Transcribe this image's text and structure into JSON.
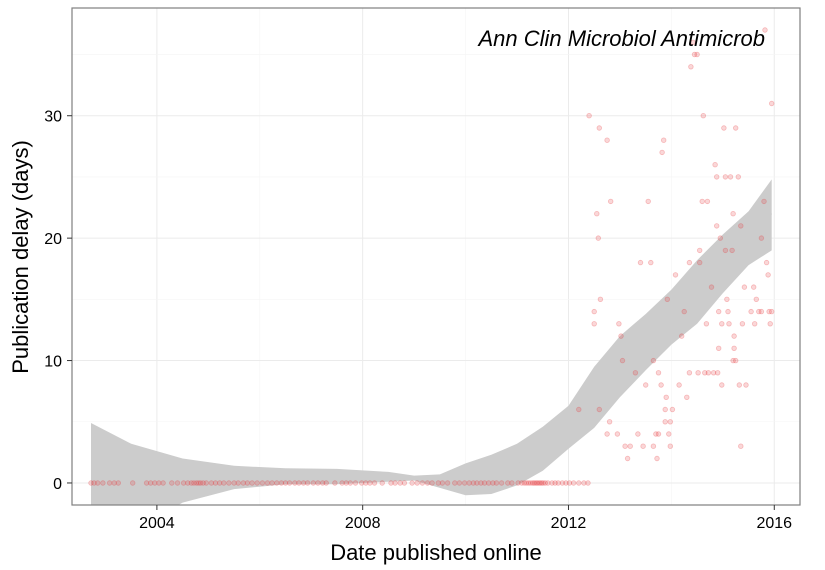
{
  "chart_data": {
    "type": "scatter",
    "title": "",
    "annotation": "Ann Clin Microbiol Antimicrob",
    "xlabel": "Date published online",
    "ylabel": "Publication delay (days)",
    "x_type": "year",
    "xlim": [
      2002.35,
      2016.5
    ],
    "ylim": [
      -1.8,
      38.8
    ],
    "x_ticks": [
      {
        "value": 2004,
        "label": "2004"
      },
      {
        "value": 2008,
        "label": "2008"
      },
      {
        "value": 2012,
        "label": "2012"
      },
      {
        "value": 2016,
        "label": "2016"
      }
    ],
    "y_ticks": [
      {
        "value": 0,
        "label": "0"
      },
      {
        "value": 10,
        "label": "10"
      },
      {
        "value": 20,
        "label": "20"
      },
      {
        "value": 30,
        "label": "30"
      }
    ],
    "grid": true,
    "point_color": "#e8383d",
    "band_color": "#cccccc",
    "points": [
      [
        2002.72,
        0
      ],
      [
        2002.78,
        0
      ],
      [
        2002.85,
        0
      ],
      [
        2002.95,
        0
      ],
      [
        2003.08,
        0
      ],
      [
        2003.17,
        0
      ],
      [
        2003.25,
        0
      ],
      [
        2003.53,
        0
      ],
      [
        2003.8,
        0
      ],
      [
        2003.88,
        0
      ],
      [
        2003.96,
        0
      ],
      [
        2004.04,
        0
      ],
      [
        2004.12,
        0
      ],
      [
        2004.29,
        0
      ],
      [
        2004.4,
        0
      ],
      [
        2004.52,
        0
      ],
      [
        2004.6,
        0
      ],
      [
        2004.67,
        0
      ],
      [
        2004.72,
        0
      ],
      [
        2004.77,
        0
      ],
      [
        2004.81,
        0
      ],
      [
        2004.85,
        0
      ],
      [
        2004.9,
        0
      ],
      [
        2004.96,
        0
      ],
      [
        2005.06,
        0
      ],
      [
        2005.14,
        0
      ],
      [
        2005.22,
        0
      ],
      [
        2005.3,
        0
      ],
      [
        2005.4,
        0
      ],
      [
        2005.5,
        0
      ],
      [
        2005.58,
        0
      ],
      [
        2005.68,
        0
      ],
      [
        2005.76,
        0
      ],
      [
        2005.85,
        0
      ],
      [
        2005.95,
        0
      ],
      [
        2006.05,
        0
      ],
      [
        2006.15,
        0
      ],
      [
        2006.24,
        0
      ],
      [
        2006.33,
        0
      ],
      [
        2006.42,
        0
      ],
      [
        2006.5,
        0
      ],
      [
        2006.58,
        0
      ],
      [
        2006.68,
        0
      ],
      [
        2006.76,
        0
      ],
      [
        2006.85,
        0
      ],
      [
        2006.93,
        0
      ],
      [
        2007.04,
        0
      ],
      [
        2007.13,
        0
      ],
      [
        2007.22,
        0
      ],
      [
        2007.29,
        0
      ],
      [
        2007.46,
        0
      ],
      [
        2007.6,
        0
      ],
      [
        2007.68,
        0
      ],
      [
        2007.76,
        0
      ],
      [
        2007.86,
        0
      ],
      [
        2007.98,
        0
      ],
      [
        2008.06,
        0
      ],
      [
        2008.14,
        0
      ],
      [
        2008.23,
        0
      ],
      [
        2008.38,
        0
      ],
      [
        2008.55,
        0
      ],
      [
        2008.63,
        0
      ],
      [
        2008.73,
        0
      ],
      [
        2008.81,
        0
      ],
      [
        2008.96,
        0
      ],
      [
        2009.06,
        0
      ],
      [
        2009.16,
        0
      ],
      [
        2009.26,
        0
      ],
      [
        2009.35,
        0
      ],
      [
        2009.47,
        0
      ],
      [
        2009.55,
        0
      ],
      [
        2009.65,
        0
      ],
      [
        2009.79,
        0
      ],
      [
        2009.88,
        0
      ],
      [
        2009.98,
        0
      ],
      [
        2010.07,
        0
      ],
      [
        2010.15,
        0
      ],
      [
        2010.22,
        0
      ],
      [
        2010.3,
        0
      ],
      [
        2010.37,
        0
      ],
      [
        2010.45,
        0
      ],
      [
        2010.53,
        0
      ],
      [
        2010.6,
        0
      ],
      [
        2010.7,
        0
      ],
      [
        2010.82,
        0
      ],
      [
        2010.9,
        0
      ],
      [
        2011.02,
        0
      ],
      [
        2011.09,
        0
      ],
      [
        2011.14,
        0
      ],
      [
        2011.18,
        0
      ],
      [
        2011.22,
        0
      ],
      [
        2011.26,
        0
      ],
      [
        2011.3,
        0
      ],
      [
        2011.33,
        0
      ],
      [
        2011.36,
        0
      ],
      [
        2011.39,
        0
      ],
      [
        2011.42,
        0
      ],
      [
        2011.45,
        0
      ],
      [
        2011.48,
        0
      ],
      [
        2011.51,
        0
      ],
      [
        2011.55,
        0
      ],
      [
        2011.6,
        0
      ],
      [
        2011.68,
        0
      ],
      [
        2011.74,
        0
      ],
      [
        2011.8,
        0
      ],
      [
        2011.88,
        0
      ],
      [
        2011.95,
        0
      ],
      [
        2012.02,
        0
      ],
      [
        2012.1,
        0
      ],
      [
        2012.2,
        0
      ],
      [
        2012.3,
        0
      ],
      [
        2012.38,
        0
      ],
      [
        2012.2,
        6
      ],
      [
        2012.4,
        30
      ],
      [
        2012.5,
        14
      ],
      [
        2012.5,
        13
      ],
      [
        2012.55,
        22
      ],
      [
        2012.58,
        20
      ],
      [
        2012.6,
        29
      ],
      [
        2012.62,
        15
      ],
      [
        2012.6,
        6
      ],
      [
        2012.75,
        28
      ],
      [
        2012.75,
        4
      ],
      [
        2012.8,
        5
      ],
      [
        2012.82,
        23
      ],
      [
        2012.95,
        4
      ],
      [
        2012.98,
        13
      ],
      [
        2013.02,
        12
      ],
      [
        2013.05,
        10
      ],
      [
        2013.1,
        3
      ],
      [
        2013.15,
        2
      ],
      [
        2013.2,
        3
      ],
      [
        2013.3,
        9
      ],
      [
        2013.35,
        4
      ],
      [
        2013.4,
        18
      ],
      [
        2013.45,
        3
      ],
      [
        2013.5,
        8
      ],
      [
        2013.55,
        23
      ],
      [
        2013.6,
        18
      ],
      [
        2013.65,
        10
      ],
      [
        2013.65,
        3
      ],
      [
        2013.7,
        4
      ],
      [
        2013.72,
        2
      ],
      [
        2013.75,
        9
      ],
      [
        2013.75,
        4
      ],
      [
        2013.8,
        8
      ],
      [
        2013.82,
        27
      ],
      [
        2013.85,
        28
      ],
      [
        2013.88,
        5
      ],
      [
        2013.88,
        6
      ],
      [
        2013.9,
        7
      ],
      [
        2013.92,
        15
      ],
      [
        2013.95,
        4
      ],
      [
        2013.98,
        3
      ],
      [
        2013.98,
        5
      ],
      [
        2014.02,
        6
      ],
      [
        2014.08,
        17
      ],
      [
        2014.15,
        8
      ],
      [
        2014.2,
        12
      ],
      [
        2014.25,
        14
      ],
      [
        2014.3,
        7
      ],
      [
        2014.35,
        9
      ],
      [
        2014.35,
        18
      ],
      [
        2014.38,
        34
      ],
      [
        2014.42,
        36
      ],
      [
        2014.45,
        35
      ],
      [
        2014.5,
        35
      ],
      [
        2014.52,
        9
      ],
      [
        2014.55,
        19
      ],
      [
        2014.55,
        18
      ],
      [
        2014.6,
        23
      ],
      [
        2014.62,
        30
      ],
      [
        2014.65,
        9
      ],
      [
        2014.68,
        13
      ],
      [
        2014.7,
        23
      ],
      [
        2014.72,
        9
      ],
      [
        2014.78,
        16
      ],
      [
        2014.82,
        9
      ],
      [
        2014.85,
        26
      ],
      [
        2014.88,
        21
      ],
      [
        2014.88,
        25
      ],
      [
        2014.9,
        9
      ],
      [
        2014.92,
        11
      ],
      [
        2014.92,
        14
      ],
      [
        2014.95,
        20
      ],
      [
        2014.98,
        13
      ],
      [
        2014.98,
        8
      ],
      [
        2015.02,
        29
      ],
      [
        2015.05,
        19
      ],
      [
        2015.05,
        25
      ],
      [
        2015.08,
        15
      ],
      [
        2015.1,
        14
      ],
      [
        2015.12,
        13
      ],
      [
        2015.15,
        25
      ],
      [
        2015.18,
        19
      ],
      [
        2015.2,
        22
      ],
      [
        2015.2,
        10
      ],
      [
        2015.22,
        11
      ],
      [
        2015.22,
        12
      ],
      [
        2015.25,
        29
      ],
      [
        2015.25,
        10
      ],
      [
        2015.3,
        25
      ],
      [
        2015.32,
        8
      ],
      [
        2015.35,
        21
      ],
      [
        2015.35,
        3
      ],
      [
        2015.38,
        13
      ],
      [
        2015.42,
        16
      ],
      [
        2015.45,
        8
      ],
      [
        2015.55,
        14
      ],
      [
        2015.6,
        16
      ],
      [
        2015.62,
        13
      ],
      [
        2015.65,
        15
      ],
      [
        2015.7,
        14
      ],
      [
        2015.75,
        20
      ],
      [
        2015.75,
        14
      ],
      [
        2015.8,
        23
      ],
      [
        2015.82,
        37
      ],
      [
        2015.85,
        18
      ],
      [
        2015.88,
        17
      ],
      [
        2015.9,
        14
      ],
      [
        2015.92,
        13
      ],
      [
        2015.95,
        31
      ],
      [
        2015.95,
        14
      ]
    ],
    "smooth_fit": [
      [
        2002.72,
        -1.0
      ],
      [
        2003.5,
        -0.4
      ],
      [
        2004.5,
        0.2
      ],
      [
        2005.5,
        0.45
      ],
      [
        2006.5,
        0.55
      ],
      [
        2007.5,
        0.55
      ],
      [
        2008.5,
        0.5
      ],
      [
        2009.0,
        0.4
      ],
      [
        2009.5,
        0.2
      ],
      [
        2010.0,
        0.3
      ],
      [
        2010.5,
        0.7
      ],
      [
        2011.0,
        1.5
      ],
      [
        2011.5,
        2.8
      ],
      [
        2012.0,
        4.5
      ],
      [
        2012.5,
        7.0
      ],
      [
        2013.0,
        9.5
      ],
      [
        2013.5,
        11.5
      ],
      [
        2014.0,
        13.5
      ],
      [
        2014.5,
        15.5
      ],
      [
        2015.0,
        18.0
      ],
      [
        2015.5,
        20.0
      ],
      [
        2015.95,
        22.0
      ]
    ],
    "band_upper": [
      [
        2002.72,
        4.9
      ],
      [
        2003.5,
        3.2
      ],
      [
        2004.5,
        2.0
      ],
      [
        2005.5,
        1.4
      ],
      [
        2006.5,
        1.2
      ],
      [
        2007.5,
        1.15
      ],
      [
        2008.5,
        0.9
      ],
      [
        2009.0,
        0.6
      ],
      [
        2009.5,
        0.7
      ],
      [
        2010.0,
        1.6
      ],
      [
        2010.5,
        2.3
      ],
      [
        2011.0,
        3.2
      ],
      [
        2011.5,
        4.6
      ],
      [
        2012.0,
        6.3
      ],
      [
        2012.5,
        9.5
      ],
      [
        2013.0,
        12.0
      ],
      [
        2013.5,
        13.8
      ],
      [
        2014.0,
        15.8
      ],
      [
        2014.5,
        18.2
      ],
      [
        2015.0,
        20.3
      ],
      [
        2015.5,
        22.2
      ],
      [
        2015.95,
        24.8
      ]
    ],
    "band_lower": [
      [
        2002.72,
        -6.5
      ],
      [
        2003.5,
        -4.0
      ],
      [
        2004.5,
        -1.6
      ],
      [
        2005.5,
        -0.5
      ],
      [
        2006.5,
        -0.1
      ],
      [
        2007.5,
        -0.1
      ],
      [
        2008.5,
        0.1
      ],
      [
        2009.0,
        0.2
      ],
      [
        2009.5,
        -0.4
      ],
      [
        2010.0,
        -1.0
      ],
      [
        2010.5,
        -0.9
      ],
      [
        2011.0,
        -0.2
      ],
      [
        2011.5,
        1.0
      ],
      [
        2012.0,
        2.8
      ],
      [
        2012.5,
        4.5
      ],
      [
        2013.0,
        7.0
      ],
      [
        2013.5,
        9.2
      ],
      [
        2014.0,
        11.3
      ],
      [
        2014.5,
        13.0
      ],
      [
        2015.0,
        15.5
      ],
      [
        2015.5,
        17.8
      ],
      [
        2015.95,
        19.0
      ]
    ]
  }
}
